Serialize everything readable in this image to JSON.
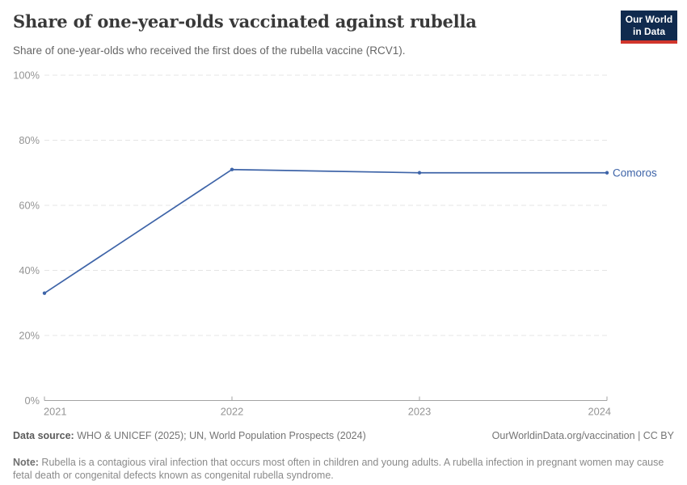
{
  "header": {
    "title": "Share of one-year-olds vaccinated against rubella",
    "subtitle": "Share of one-year-olds who received the first does of the rubella vaccine (RCV1)."
  },
  "logo": {
    "line1": "Our World",
    "line2": "in Data",
    "bg_color": "#102a4e",
    "bar_color": "#d1352c"
  },
  "chart_data": {
    "type": "line",
    "title": "Share of one-year-olds vaccinated against rubella",
    "x": [
      "2021",
      "2022",
      "2023",
      "2024"
    ],
    "series": [
      {
        "name": "Comoros",
        "color": "#3e64a8",
        "values": [
          33,
          71,
          70,
          70
        ]
      }
    ],
    "y_ticks": [
      {
        "value": 0,
        "label": "0%"
      },
      {
        "value": 20,
        "label": "20%"
      },
      {
        "value": 40,
        "label": "40%"
      },
      {
        "value": 60,
        "label": "60%"
      },
      {
        "value": 80,
        "label": "80%"
      },
      {
        "value": 100,
        "label": "100%"
      }
    ],
    "ylim": [
      0,
      100
    ],
    "grid": "horizontal-dashed",
    "legend": "series-end-label",
    "grid_color": "#e5e5e5",
    "axis_color": "#a3a3a3",
    "tick_label_color": "#949494"
  },
  "footer": {
    "data_source_label": "Data source:",
    "data_source_text": " WHO & UNICEF (2025); UN, World Population Prospects (2024)",
    "credit": "OurWorldinData.org/vaccination | CC BY",
    "note_label": "Note:",
    "note_text": " Rubella is a contagious viral infection that occurs most often in children and young adults. A rubella infection in pregnant women may cause fetal death or congenital defects known as congenital rubella syndrome."
  }
}
